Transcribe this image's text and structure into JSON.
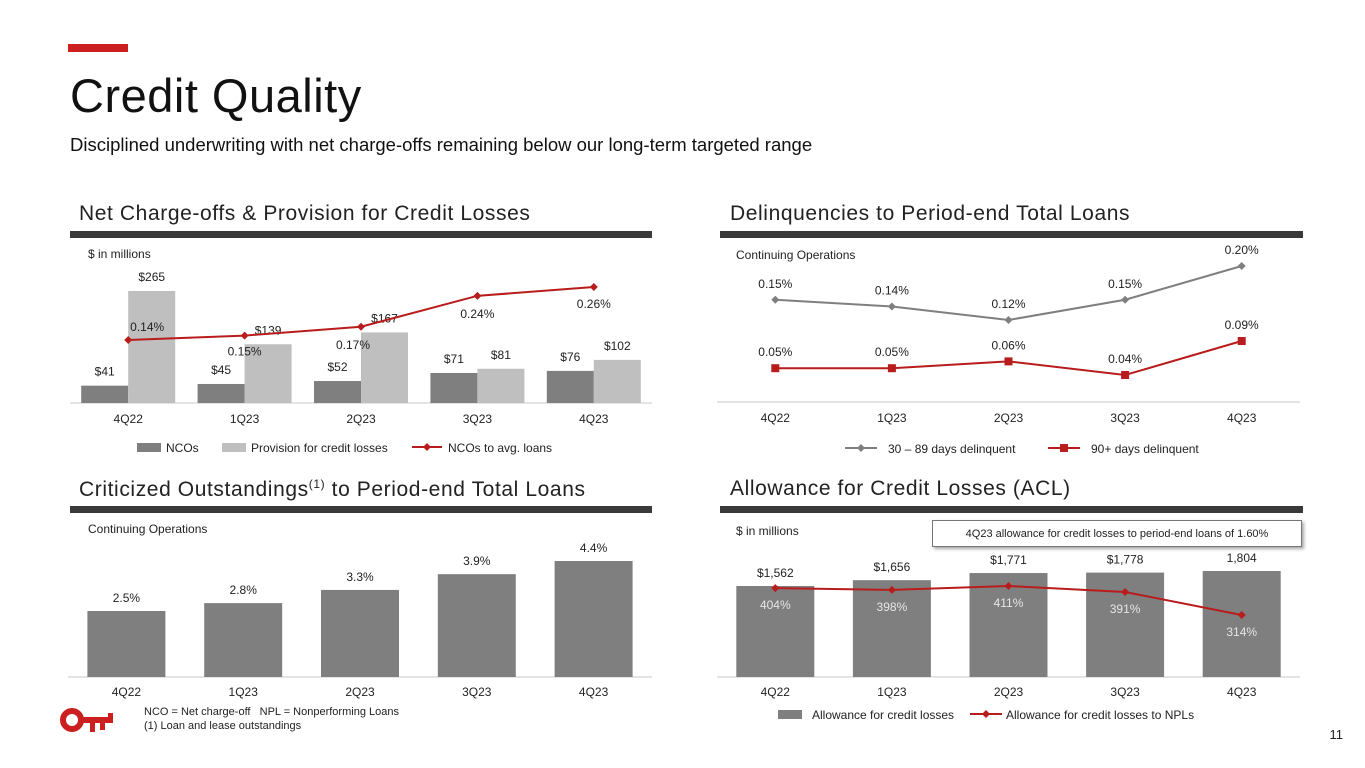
{
  "header": {
    "title": "Credit Quality",
    "subtitle": "Disciplined underwriting with net charge-offs remaining below our long-term targeted range"
  },
  "colors": {
    "accent": "#cc1f1f",
    "bar_dark": "#7f7f7f",
    "bar_light": "#bfbfbf",
    "line_red": "#b81c1c",
    "line_gray": "#7f7f7f",
    "rule": "#3a3a3a"
  },
  "footer": {
    "line1": "NCO = Net charge-off   NPL = Nonperforming Loans",
    "line2": "(1) Loan and lease outstandings",
    "page_number": "11"
  },
  "chart_data": [
    {
      "id": "nco",
      "type": "bar",
      "title": "Net Charge-offs & Provision for Credit Losses",
      "unit_note": "$ in millions",
      "categories": [
        "4Q22",
        "1Q23",
        "2Q23",
        "3Q23",
        "4Q23"
      ],
      "series": [
        {
          "name": "NCOs",
          "values": [
            41,
            45,
            52,
            71,
            76
          ],
          "labels": [
            "$41",
            "$45",
            "$52",
            "$71",
            "$76"
          ]
        },
        {
          "name": "Provision for credit losses",
          "values": [
            265,
            139,
            167,
            81,
            102
          ],
          "labels": [
            "$265",
            "$139",
            "$167",
            "$81",
            "$102"
          ]
        }
      ],
      "line_series": {
        "name": "NCOs to avg. loans",
        "values": [
          0.14,
          0.15,
          0.17,
          0.24,
          0.26
        ],
        "labels": [
          "0.14%",
          "0.15%",
          "0.17%",
          "0.24%",
          "0.26%"
        ]
      },
      "legend": [
        "NCOs",
        "Provision for credit losses",
        "NCOs to avg. loans"
      ]
    },
    {
      "id": "delinq",
      "type": "line",
      "title": "Delinquencies to Period-end Total Loans",
      "unit_note": "Continuing Operations",
      "categories": [
        "4Q22",
        "1Q23",
        "2Q23",
        "3Q23",
        "4Q23"
      ],
      "series": [
        {
          "name": "30 – 89 days delinquent",
          "values": [
            0.15,
            0.14,
            0.12,
            0.15,
            0.2
          ],
          "labels": [
            "0.15%",
            "0.14%",
            "0.12%",
            "0.15%",
            "0.20%"
          ]
        },
        {
          "name": "90+ days delinquent",
          "values": [
            0.05,
            0.05,
            0.06,
            0.04,
            0.09
          ],
          "labels": [
            "0.05%",
            "0.05%",
            "0.06%",
            "0.04%",
            "0.09%"
          ]
        }
      ],
      "legend": [
        "30 – 89 days delinquent",
        "90+ days delinquent"
      ]
    },
    {
      "id": "crit",
      "type": "bar",
      "title": "Criticized Outstandings",
      "title_sup": "(1)",
      "title_rest": " to Period-end Total Loans",
      "unit_note": "Continuing Operations",
      "categories": [
        "4Q22",
        "1Q23",
        "2Q23",
        "3Q23",
        "4Q23"
      ],
      "values": [
        2.5,
        2.8,
        3.3,
        3.9,
        4.4
      ],
      "labels": [
        "2.5%",
        "2.8%",
        "3.3%",
        "3.9%",
        "4.4%"
      ]
    },
    {
      "id": "acl",
      "type": "bar",
      "title": "Allowance for Credit Losses (ACL)",
      "unit_note": "$ in millions",
      "callout": "4Q23 allowance for credit losses to period-end loans of 1.60%",
      "categories": [
        "4Q22",
        "1Q23",
        "2Q23",
        "3Q23",
        "4Q23"
      ],
      "values": [
        1562,
        1656,
        1771,
        1778,
        1804
      ],
      "labels": [
        "$1,562",
        "$1,656",
        "$1,771",
        "$1,778",
        "1,804"
      ],
      "line_series": {
        "name": "Allowance for credit losses to NPLs",
        "values": [
          404,
          398,
          411,
          391,
          314
        ],
        "labels": [
          "404%",
          "398%",
          "411%",
          "391%",
          "314%"
        ]
      },
      "legend": [
        "Allowance for credit losses",
        "Allowance for credit losses to NPLs"
      ]
    }
  ]
}
